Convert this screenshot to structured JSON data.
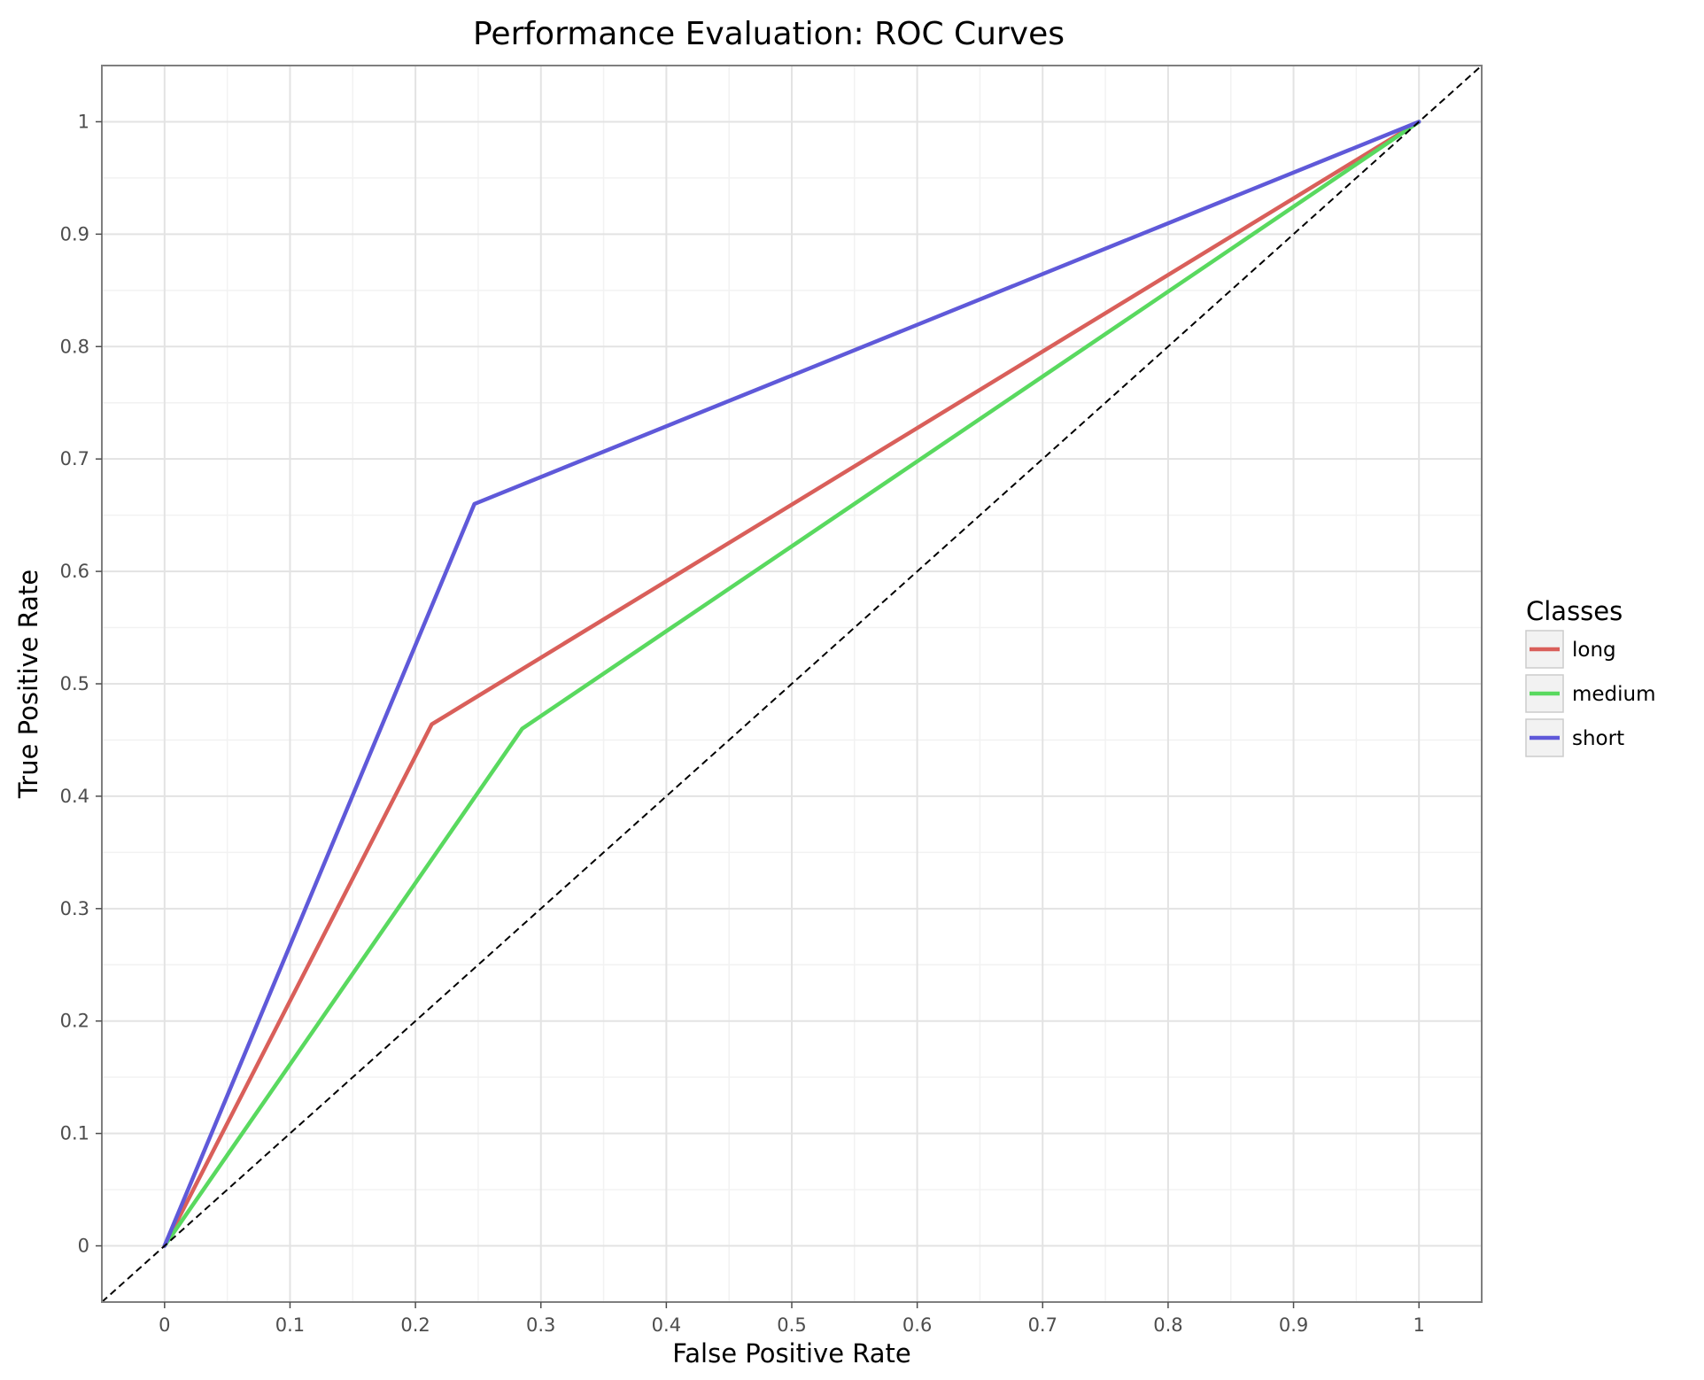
{
  "chart_data": {
    "type": "line",
    "title": "Performance Evaluation: ROC Curves",
    "xlabel": "False Positive Rate",
    "ylabel": "True Positive Rate",
    "xlim": [
      -0.05,
      1.05
    ],
    "ylim": [
      -0.05,
      1.05
    ],
    "x_ticks": [
      0,
      0.1,
      0.2,
      0.3,
      0.4,
      0.5,
      0.6,
      0.7,
      0.8,
      0.9,
      1
    ],
    "y_ticks": [
      0,
      0.1,
      0.2,
      0.3,
      0.4,
      0.5,
      0.6,
      0.7,
      0.8,
      0.9,
      1
    ],
    "x_tick_labels": [
      "0",
      "0.1",
      "0.2",
      "0.3",
      "0.4",
      "0.5",
      "0.6",
      "0.7",
      "0.8",
      "0.9",
      "1"
    ],
    "y_tick_labels": [
      "0",
      "0.1",
      "0.2",
      "0.3",
      "0.4",
      "0.5",
      "0.6",
      "0.7",
      "0.8",
      "0.9",
      "1"
    ],
    "grid": true,
    "legend": {
      "title": "Classes",
      "position": "right"
    },
    "series": [
      {
        "name": "long",
        "color": "#d95f5a",
        "x": [
          0,
          0.213,
          1
        ],
        "y": [
          0,
          0.464,
          1
        ]
      },
      {
        "name": "medium",
        "color": "#59d95f",
        "x": [
          0,
          0.285,
          1
        ],
        "y": [
          0,
          0.46,
          1
        ]
      },
      {
        "name": "short",
        "color": "#5f59d9",
        "x": [
          0,
          0.247,
          1
        ],
        "y": [
          0,
          0.66,
          1
        ]
      }
    ],
    "reference_line": {
      "style": "dashed",
      "color": "#000000",
      "x": [
        -0.05,
        1.05
      ],
      "y": [
        -0.05,
        1.05
      ]
    }
  }
}
